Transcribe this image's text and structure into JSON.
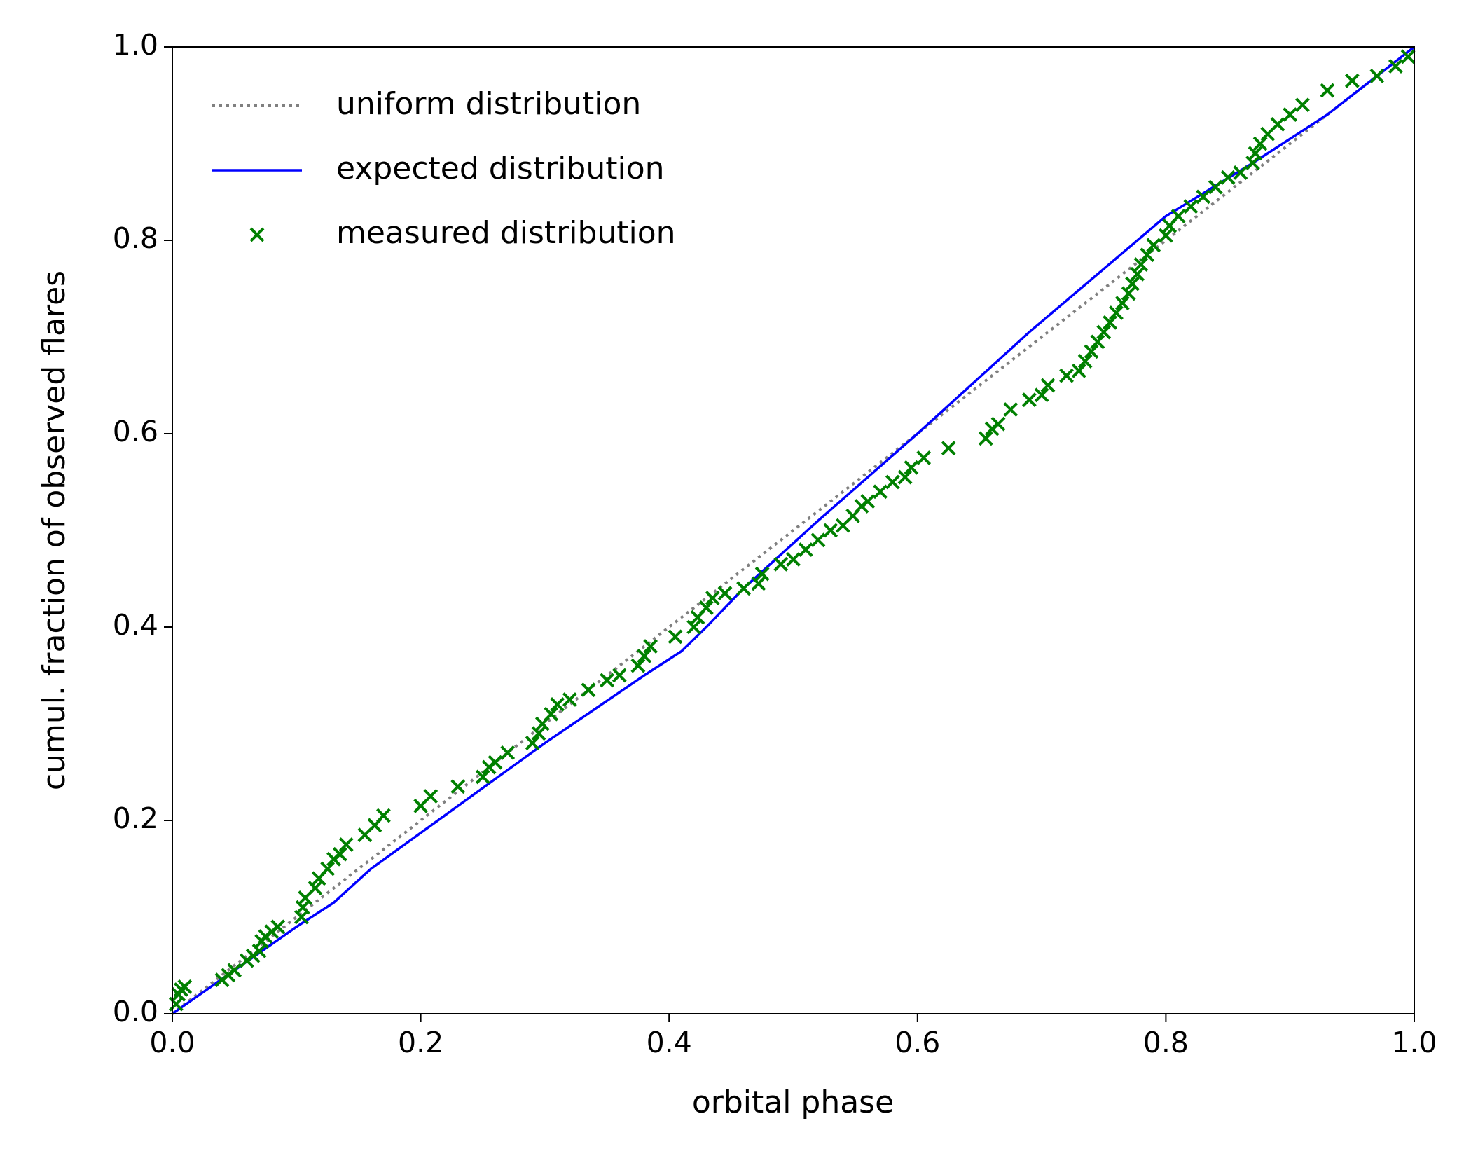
{
  "chart_data": {
    "type": "line",
    "xlabel": "orbital phase",
    "ylabel": "cumul. fraction of observed flares",
    "xlim": [
      0,
      1
    ],
    "ylim": [
      0,
      1
    ],
    "xticks": [
      {
        "value": 0,
        "label": "0.0"
      },
      0.2,
      0.4,
      0.6,
      0.8,
      {
        "value": 1,
        "label": "1.0"
      }
    ],
    "yticks": [
      {
        "value": 0,
        "label": "0.0"
      },
      0.2,
      0.4,
      0.6,
      0.8,
      {
        "value": 1,
        "label": "1.0"
      }
    ],
    "legend": "upper left",
    "series": [
      {
        "name": "uniform distribution",
        "type": "line",
        "linestyle": "dotted",
        "color": "#808080",
        "x": [
          0,
          1
        ],
        "values": [
          0,
          1
        ]
      },
      {
        "name": "expected distribution",
        "type": "line",
        "linestyle": "solid",
        "color": "#0000ff",
        "x": [
          0,
          0.1,
          0.13,
          0.16,
          0.23,
          0.3,
          0.38,
          0.41,
          0.43,
          0.46,
          0.52,
          0.6,
          0.69,
          0.8,
          0.87,
          0.93,
          1
        ],
        "values": [
          0,
          0.09,
          0.115,
          0.15,
          0.215,
          0.28,
          0.35,
          0.375,
          0.4,
          0.44,
          0.51,
          0.6,
          0.705,
          0.825,
          0.88,
          0.93,
          1
        ]
      },
      {
        "name": "measured distribution",
        "type": "scatter",
        "marker": "x",
        "color": "#008000",
        "x": [
          0.003,
          0.005,
          0.007,
          0.01,
          0.04,
          0.045,
          0.05,
          0.06,
          0.065,
          0.07,
          0.072,
          0.075,
          0.08,
          0.085,
          0.104,
          0.105,
          0.107,
          0.115,
          0.118,
          0.125,
          0.13,
          0.135,
          0.14,
          0.155,
          0.163,
          0.17,
          0.2,
          0.208,
          0.23,
          0.25,
          0.255,
          0.26,
          0.27,
          0.29,
          0.295,
          0.298,
          0.305,
          0.31,
          0.32,
          0.335,
          0.35,
          0.36,
          0.375,
          0.38,
          0.385,
          0.405,
          0.42,
          0.423,
          0.43,
          0.435,
          0.445,
          0.46,
          0.472,
          0.475,
          0.49,
          0.5,
          0.51,
          0.52,
          0.53,
          0.54,
          0.548,
          0.555,
          0.56,
          0.57,
          0.58,
          0.59,
          0.595,
          0.605,
          0.625,
          0.655,
          0.66,
          0.665,
          0.675,
          0.69,
          0.7,
          0.705,
          0.72,
          0.73,
          0.735,
          0.74,
          0.745,
          0.75,
          0.755,
          0.76,
          0.765,
          0.77,
          0.773,
          0.777,
          0.78,
          0.785,
          0.79,
          0.8,
          0.803,
          0.81,
          0.82,
          0.83,
          0.84,
          0.85,
          0.86,
          0.87,
          0.872,
          0.876,
          0.882,
          0.89,
          0.9,
          0.91,
          0.93,
          0.95,
          0.97,
          0.985,
          0.995
        ],
        "values": [
          0.01,
          0.02,
          0.025,
          0.028,
          0.035,
          0.04,
          0.045,
          0.055,
          0.06,
          0.065,
          0.075,
          0.08,
          0.085,
          0.09,
          0.1,
          0.11,
          0.12,
          0.13,
          0.14,
          0.15,
          0.16,
          0.165,
          0.175,
          0.185,
          0.195,
          0.205,
          0.215,
          0.225,
          0.235,
          0.245,
          0.255,
          0.26,
          0.27,
          0.28,
          0.29,
          0.3,
          0.31,
          0.32,
          0.325,
          0.335,
          0.345,
          0.35,
          0.36,
          0.37,
          0.38,
          0.39,
          0.4,
          0.41,
          0.42,
          0.43,
          0.435,
          0.44,
          0.445,
          0.455,
          0.465,
          0.47,
          0.48,
          0.49,
          0.5,
          0.505,
          0.515,
          0.525,
          0.53,
          0.54,
          0.55,
          0.555,
          0.565,
          0.575,
          0.585,
          0.595,
          0.605,
          0.61,
          0.625,
          0.635,
          0.64,
          0.65,
          0.66,
          0.665,
          0.675,
          0.685,
          0.695,
          0.705,
          0.715,
          0.725,
          0.735,
          0.745,
          0.755,
          0.765,
          0.775,
          0.785,
          0.795,
          0.805,
          0.815,
          0.825,
          0.835,
          0.845,
          0.855,
          0.865,
          0.87,
          0.88,
          0.89,
          0.9,
          0.91,
          0.92,
          0.93,
          0.94,
          0.955,
          0.965,
          0.97,
          0.98,
          0.99
        ]
      }
    ]
  }
}
